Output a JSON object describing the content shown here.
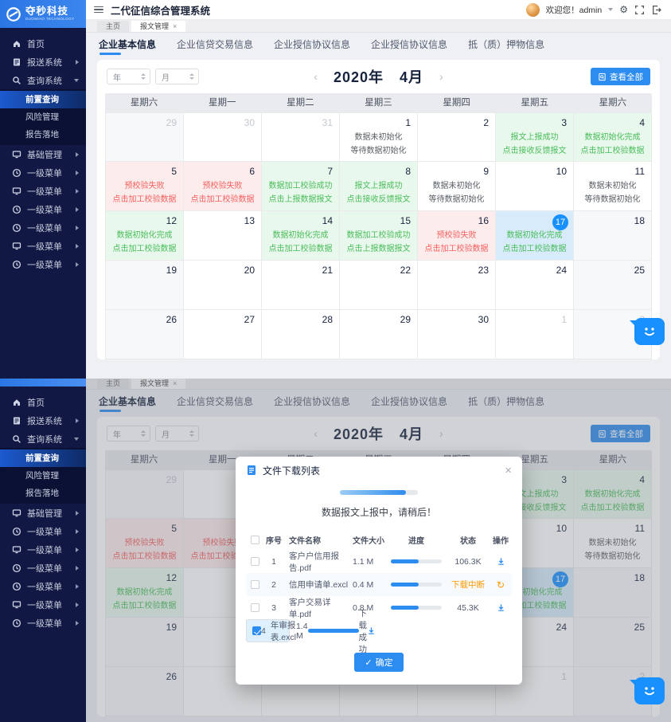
{
  "brand": {
    "logo_text": "夺秒科技",
    "logo_sub": "DUOMIAO TECHNOLOGY"
  },
  "header": {
    "title": "二代征信综合管理系统",
    "welcome": "欢迎您！admin"
  },
  "icons": {
    "close": "×",
    "check": "✓",
    "refresh": "↻",
    "chev_left": "‹",
    "chev_right": "›"
  },
  "window_tabs": [
    {
      "label": "主页",
      "active": false,
      "closable": false
    },
    {
      "label": "报文管理",
      "active": true,
      "closable": true
    }
  ],
  "sidebar": {
    "items": [
      {
        "label": "首页",
        "icon": "home-icon",
        "arrow": null
      },
      {
        "label": "报送系统",
        "icon": "send-icon",
        "arrow": "right"
      },
      {
        "label": "查询系统",
        "icon": "search-icon",
        "arrow": "down",
        "children": [
          {
            "label": "前置查询",
            "active": true
          },
          {
            "label": "风险管理",
            "active": false
          },
          {
            "label": "报告落地",
            "active": false
          }
        ]
      },
      {
        "label": "基础管理",
        "icon": "monitor-icon",
        "arrow": "right"
      },
      {
        "label": "一级菜单",
        "icon": "clock-icon",
        "arrow": "right"
      },
      {
        "label": "一级菜单",
        "icon": "monitor-icon",
        "arrow": "right"
      },
      {
        "label": "一级菜单",
        "icon": "clock-icon",
        "arrow": "right"
      },
      {
        "label": "一级菜单",
        "icon": "clock-icon",
        "arrow": "right"
      },
      {
        "label": "一级菜单",
        "icon": "monitor-icon",
        "arrow": "right"
      },
      {
        "label": "一级菜单",
        "icon": "clock-icon",
        "arrow": "right"
      }
    ]
  },
  "nav_tabs": [
    {
      "label": "企业基本信息",
      "active": true
    },
    {
      "label": "企业信贷交易信息",
      "active": false
    },
    {
      "label": "企业授信协议信息",
      "active": false
    },
    {
      "label": "企业授信协议信息",
      "active": false
    },
    {
      "label": "抵（质）押物信息",
      "active": false
    }
  ],
  "calendar": {
    "year_placeholder": "年",
    "month_placeholder": "月",
    "year_label": "2020年",
    "month_label": "4月",
    "view_all": "查看全部",
    "weekdays": [
      "星期六",
      "星期一",
      "星期二",
      "星期三",
      "星期四",
      "星期五",
      "星期六"
    ],
    "cells": [
      {
        "d": "29",
        "out": true,
        "wk": true
      },
      {
        "d": "30",
        "out": true
      },
      {
        "d": "31",
        "out": true
      },
      {
        "d": "1",
        "tone": "plain",
        "l1": "数据未初始化",
        "l2": "等待数据初始化"
      },
      {
        "d": "2"
      },
      {
        "d": "3",
        "tone": "green",
        "l1": "报文上报成功",
        "l2": "点击接收反馈报文"
      },
      {
        "d": "4",
        "tone": "green",
        "wk": true,
        "l1": "数据初始化完成",
        "l2": "点击加工校验数据"
      },
      {
        "d": "5",
        "tone": "red",
        "wk": true,
        "l1": "预校验失败",
        "l2": "点击加工校验数据"
      },
      {
        "d": "6",
        "tone": "red",
        "l1": "预校验失败",
        "l2": "点击加工校验数据"
      },
      {
        "d": "7",
        "tone": "green",
        "l1": "数据加工校验成功",
        "l2": "点击上报数据报文"
      },
      {
        "d": "8",
        "tone": "green",
        "l1": "报文上报成功",
        "l2": "点击接收反馈报文"
      },
      {
        "d": "9",
        "tone": "plain",
        "l1": "数据未初始化",
        "l2": "等待数据初始化"
      },
      {
        "d": "10"
      },
      {
        "d": "11",
        "tone": "plain",
        "wk": true,
        "l1": "数据未初始化",
        "l2": "等待数据初始化"
      },
      {
        "d": "12",
        "tone": "green",
        "wk": true,
        "l1": "数据初始化完成",
        "l2": "点击加工校验数据"
      },
      {
        "d": "13"
      },
      {
        "d": "14",
        "tone": "green",
        "l1": "数据初始化完成",
        "l2": "点击加工校验数据"
      },
      {
        "d": "15",
        "tone": "green",
        "l1": "数据加工校验成功",
        "l2": "点击上报数据报文"
      },
      {
        "d": "16",
        "tone": "red",
        "l1": "预校验失败",
        "l2": "点击加工校验数据"
      },
      {
        "d": "17",
        "tone": "today",
        "l1": "数据初始化完成",
        "l2": "点击加工校验数据"
      },
      {
        "d": "18",
        "wk": true
      },
      {
        "d": "19",
        "wk": true
      },
      {
        "d": "20"
      },
      {
        "d": "21"
      },
      {
        "d": "22"
      },
      {
        "d": "23"
      },
      {
        "d": "24"
      },
      {
        "d": "25",
        "wk": true
      },
      {
        "d": "26",
        "wk": true
      },
      {
        "d": "27"
      },
      {
        "d": "28"
      },
      {
        "d": "29"
      },
      {
        "d": "30"
      },
      {
        "d": "1",
        "out": true
      },
      {
        "d": "2",
        "out": true,
        "wk": true
      }
    ]
  },
  "modal": {
    "title": "文件下载列表",
    "progress_percent": 85,
    "caption": "数据报文上报中，请稍后！",
    "columns": [
      "序号",
      "文件名称",
      "文件大小",
      "进度",
      "状态",
      "操作"
    ],
    "rows": [
      {
        "no": "1",
        "name": "客户户信用报告.pdf",
        "size": "1.1 M",
        "progress": 55,
        "status": "106.3K",
        "status_tone": "default",
        "op": "download",
        "checked": false,
        "selected": false
      },
      {
        "no": "2",
        "name": "信用申请单.excl",
        "size": "0.4 M",
        "progress": 55,
        "status": "下载中断",
        "status_tone": "orange",
        "op": "refresh",
        "checked": false,
        "selected": false
      },
      {
        "no": "3",
        "name": "客户交易详单.pdf",
        "size": "0.8 M",
        "progress": 55,
        "status": "45.3K",
        "status_tone": "default",
        "op": "download",
        "checked": false,
        "selected": false
      },
      {
        "no": "4",
        "name": "年审报表.excl",
        "size": "1.4 M",
        "progress": 100,
        "status": "下载成功",
        "status_tone": "default",
        "op": "download",
        "checked": true,
        "selected": true
      }
    ],
    "confirm_label": "确定"
  },
  "colors": {
    "accent": "#2d8cf0",
    "sidebar_bg": "#101843",
    "logo_blue": "#2e7be6",
    "green_text": "#49bd5b",
    "green_bg": "#e9f8ec",
    "red_text": "#f56060",
    "red_bg": "#fdecec",
    "today_blue": "#1890ff",
    "today_bg": "#d8ebfa",
    "orange": "#ff9900",
    "weekend_bg": "#f7f8fa"
  }
}
